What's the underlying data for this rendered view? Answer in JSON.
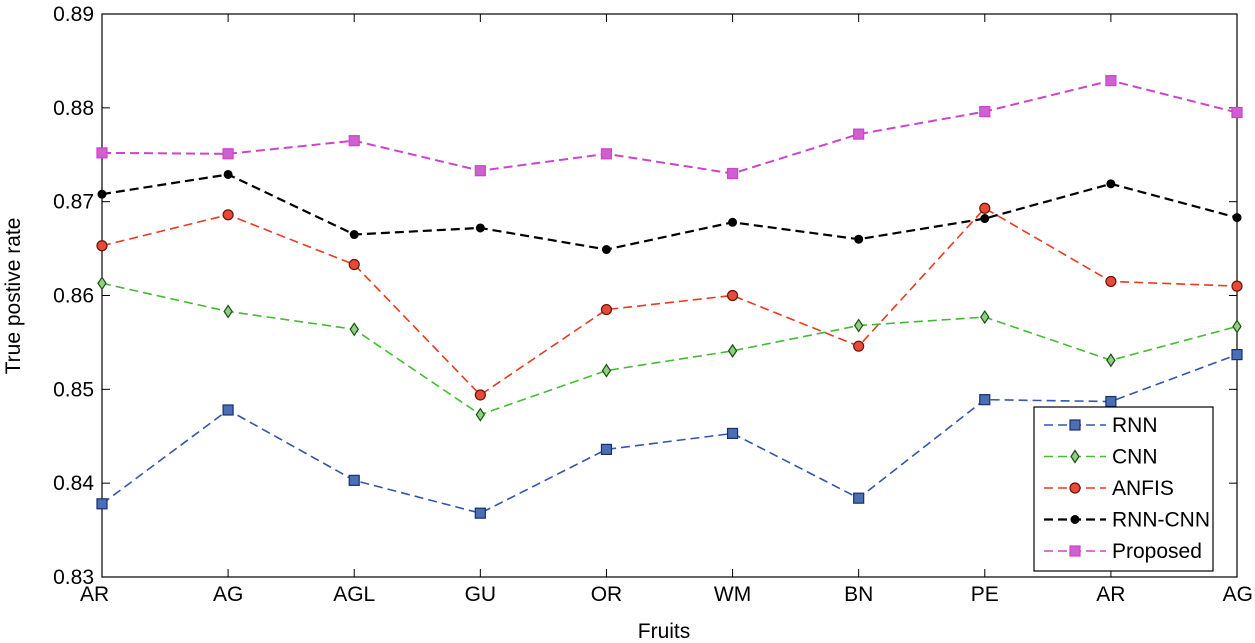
{
  "chart_data": {
    "type": "line",
    "xlabel": "Fruits",
    "ylabel": "True postive rate",
    "categories": [
      "AR",
      "AG",
      "AGL",
      "GU",
      "OR",
      "WM",
      "BN",
      "PE",
      "AR",
      "AG"
    ],
    "ylim": [
      0.83,
      0.89
    ],
    "yticks": [
      "0.83",
      "0.84",
      "0.85",
      "0.86",
      "0.87",
      "0.88",
      "0.89"
    ],
    "grid": false,
    "legend_position": "bottom-right",
    "series": [
      {
        "name": "RNN",
        "color": "#3355aa",
        "marker": "square",
        "marker_fill": "#4a6fb5",
        "values": [
          0.8378,
          0.8478,
          0.8403,
          0.8368,
          0.8436,
          0.8453,
          0.8384,
          0.8489,
          0.8487,
          0.8537
        ]
      },
      {
        "name": "CNN",
        "color": "#44bb33",
        "marker": "diamond",
        "marker_fill": "#8ed080",
        "values": [
          0.8613,
          0.8583,
          0.8564,
          0.8473,
          0.852,
          0.8541,
          0.8568,
          0.8577,
          0.8531,
          0.8567
        ]
      },
      {
        "name": "ANFIS",
        "color": "#e83a1e",
        "marker": "circle",
        "marker_fill": "#e84a3a",
        "values": [
          0.8653,
          0.8686,
          0.8633,
          0.8494,
          0.8585,
          0.86,
          0.8546,
          0.8693,
          0.8615,
          0.861
        ]
      },
      {
        "name": "RNN-CNN",
        "color": "#000000",
        "marker": "dot",
        "marker_fill": "#000000",
        "values": [
          0.8708,
          0.8729,
          0.8665,
          0.8672,
          0.8649,
          0.8678,
          0.866,
          0.8682,
          0.8719,
          0.8683
        ]
      },
      {
        "name": "Proposed",
        "color": "#cc44cc",
        "marker": "square",
        "marker_fill": "#d060cf",
        "values": [
          0.8752,
          0.8751,
          0.8765,
          0.8733,
          0.8751,
          0.873,
          0.8772,
          0.8796,
          0.8829,
          0.8795
        ]
      }
    ]
  }
}
